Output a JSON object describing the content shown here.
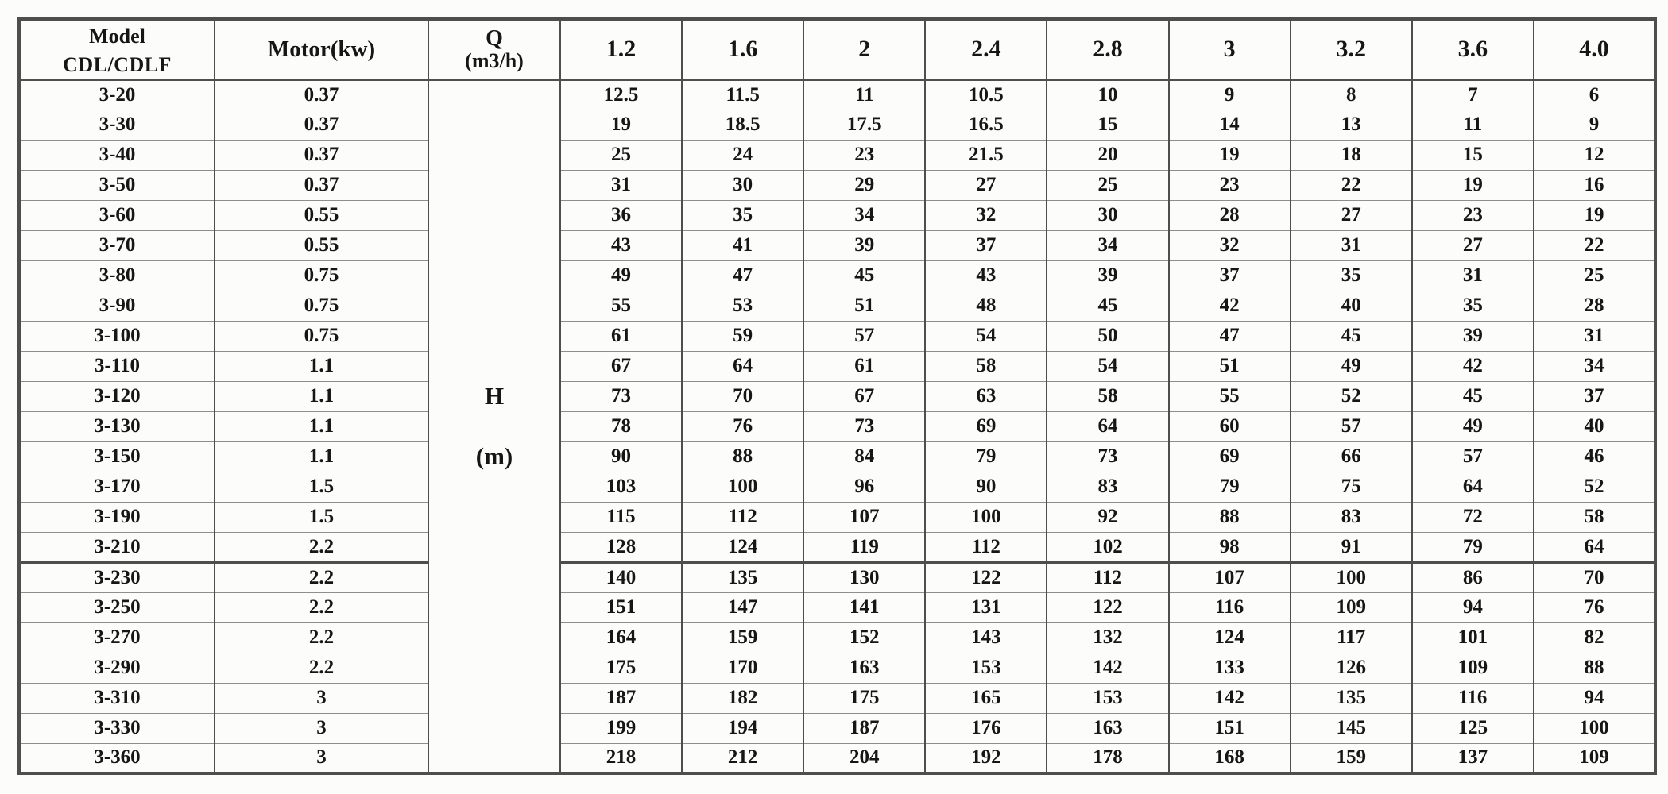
{
  "colors": {
    "page_bg": "#fcfcfa",
    "text": "#161616",
    "grid_heavy": "#4e4e4e",
    "grid_light": "#8e8e8e"
  },
  "table": {
    "type": "table",
    "header": {
      "model_line1": "Model",
      "model_line2": "CDL/CDLF",
      "motor_label": "Motor(kw)",
      "flow_symbol": "Q",
      "flow_unit": "(m3/h)",
      "flow_values": [
        "1.2",
        "1.6",
        "2",
        "2.4",
        "2.8",
        "3",
        "3.2",
        "3.6",
        "4.0"
      ]
    },
    "body_merged_cell": {
      "symbol": "H",
      "unit": "(m)"
    },
    "section_break_before_model": "3-230",
    "rows": [
      {
        "model": "3-20",
        "motor": "0.37",
        "heads": [
          "12.5",
          "11.5",
          "11",
          "10.5",
          "10",
          "9",
          "8",
          "7",
          "6"
        ]
      },
      {
        "model": "3-30",
        "motor": "0.37",
        "heads": [
          "19",
          "18.5",
          "17.5",
          "16.5",
          "15",
          "14",
          "13",
          "11",
          "9"
        ]
      },
      {
        "model": "3-40",
        "motor": "0.37",
        "heads": [
          "25",
          "24",
          "23",
          "21.5",
          "20",
          "19",
          "18",
          "15",
          "12"
        ]
      },
      {
        "model": "3-50",
        "motor": "0.37",
        "heads": [
          "31",
          "30",
          "29",
          "27",
          "25",
          "23",
          "22",
          "19",
          "16"
        ]
      },
      {
        "model": "3-60",
        "motor": "0.55",
        "heads": [
          "36",
          "35",
          "34",
          "32",
          "30",
          "28",
          "27",
          "23",
          "19"
        ]
      },
      {
        "model": "3-70",
        "motor": "0.55",
        "heads": [
          "43",
          "41",
          "39",
          "37",
          "34",
          "32",
          "31",
          "27",
          "22"
        ]
      },
      {
        "model": "3-80",
        "motor": "0.75",
        "heads": [
          "49",
          "47",
          "45",
          "43",
          "39",
          "37",
          "35",
          "31",
          "25"
        ]
      },
      {
        "model": "3-90",
        "motor": "0.75",
        "heads": [
          "55",
          "53",
          "51",
          "48",
          "45",
          "42",
          "40",
          "35",
          "28"
        ]
      },
      {
        "model": "3-100",
        "motor": "0.75",
        "heads": [
          "61",
          "59",
          "57",
          "54",
          "50",
          "47",
          "45",
          "39",
          "31"
        ]
      },
      {
        "model": "3-110",
        "motor": "1.1",
        "heads": [
          "67",
          "64",
          "61",
          "58",
          "54",
          "51",
          "49",
          "42",
          "34"
        ]
      },
      {
        "model": "3-120",
        "motor": "1.1",
        "heads": [
          "73",
          "70",
          "67",
          "63",
          "58",
          "55",
          "52",
          "45",
          "37"
        ]
      },
      {
        "model": "3-130",
        "motor": "1.1",
        "heads": [
          "78",
          "76",
          "73",
          "69",
          "64",
          "60",
          "57",
          "49",
          "40"
        ]
      },
      {
        "model": "3-150",
        "motor": "1.1",
        "heads": [
          "90",
          "88",
          "84",
          "79",
          "73",
          "69",
          "66",
          "57",
          "46"
        ]
      },
      {
        "model": "3-170",
        "motor": "1.5",
        "heads": [
          "103",
          "100",
          "96",
          "90",
          "83",
          "79",
          "75",
          "64",
          "52"
        ]
      },
      {
        "model": "3-190",
        "motor": "1.5",
        "heads": [
          "115",
          "112",
          "107",
          "100",
          "92",
          "88",
          "83",
          "72",
          "58"
        ]
      },
      {
        "model": "3-210",
        "motor": "2.2",
        "heads": [
          "128",
          "124",
          "119",
          "112",
          "102",
          "98",
          "91",
          "79",
          "64"
        ]
      },
      {
        "model": "3-230",
        "motor": "2.2",
        "heads": [
          "140",
          "135",
          "130",
          "122",
          "112",
          "107",
          "100",
          "86",
          "70"
        ]
      },
      {
        "model": "3-250",
        "motor": "2.2",
        "heads": [
          "151",
          "147",
          "141",
          "131",
          "122",
          "116",
          "109",
          "94",
          "76"
        ]
      },
      {
        "model": "3-270",
        "motor": "2.2",
        "heads": [
          "164",
          "159",
          "152",
          "143",
          "132",
          "124",
          "117",
          "101",
          "82"
        ]
      },
      {
        "model": "3-290",
        "motor": "2.2",
        "heads": [
          "175",
          "170",
          "163",
          "153",
          "142",
          "133",
          "126",
          "109",
          "88"
        ]
      },
      {
        "model": "3-310",
        "motor": "3",
        "heads": [
          "187",
          "182",
          "175",
          "165",
          "153",
          "142",
          "135",
          "116",
          "94"
        ]
      },
      {
        "model": "3-330",
        "motor": "3",
        "heads": [
          "199",
          "194",
          "187",
          "176",
          "163",
          "151",
          "145",
          "125",
          "100"
        ]
      },
      {
        "model": "3-360",
        "motor": "3",
        "heads": [
          "218",
          "212",
          "204",
          "192",
          "178",
          "168",
          "159",
          "137",
          "109"
        ]
      }
    ]
  }
}
